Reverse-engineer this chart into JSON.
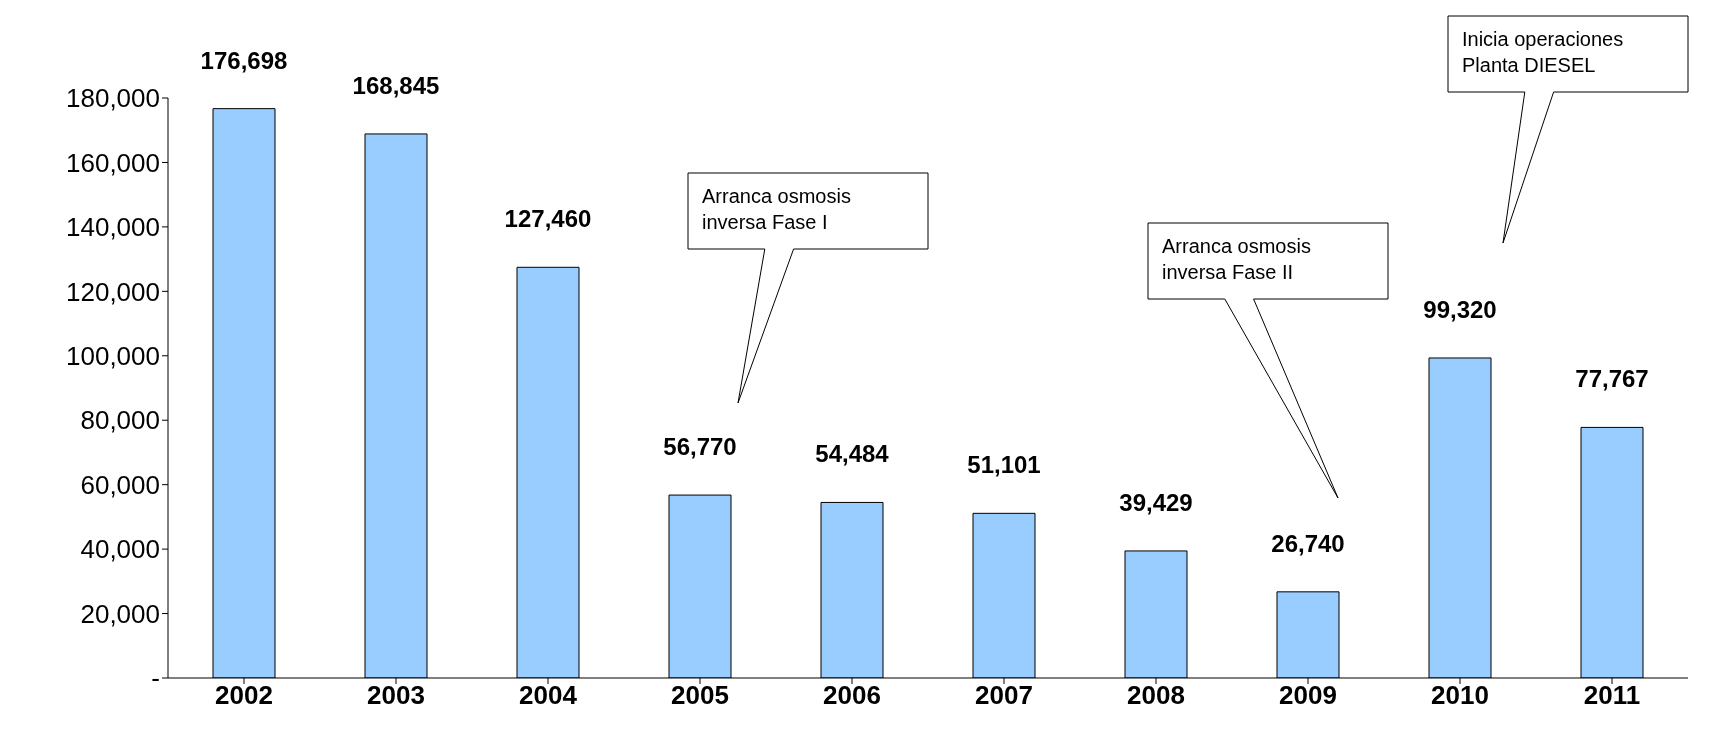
{
  "chart_data": {
    "type": "bar",
    "categories": [
      "2002",
      "2003",
      "2004",
      "2005",
      "2006",
      "2007",
      "2008",
      "2009",
      "2010",
      "2011"
    ],
    "values": [
      176698,
      168845,
      127460,
      56770,
      54484,
      51101,
      39429,
      26740,
      99320,
      77767
    ],
    "value_labels": [
      "176,698",
      "168,845",
      "127,460",
      "56,770",
      "54,484",
      "51,101",
      "39,429",
      "26,740",
      "99,320",
      "77,767"
    ],
    "color": "#99ccff",
    "ylim": [
      0,
      180000
    ],
    "yticks": [
      {
        "value": 0,
        "label": "-"
      },
      {
        "value": 20000,
        "label": "20,000"
      },
      {
        "value": 40000,
        "label": "40,000"
      },
      {
        "value": 60000,
        "label": "60,000"
      },
      {
        "value": 80000,
        "label": "80,000"
      },
      {
        "value": 100000,
        "label": "100,000"
      },
      {
        "value": 120000,
        "label": "120,000"
      },
      {
        "value": 140000,
        "label": "140,000"
      },
      {
        "value": 160000,
        "label": "160,000"
      },
      {
        "value": 180000,
        "label": "180,000"
      }
    ],
    "annotations": [
      "Arranca osmosis\ninversa Fase I",
      "Arranca osmosis\ninversa Fase II",
      "Inicia operaciones\nPlanta DIESEL"
    ]
  }
}
